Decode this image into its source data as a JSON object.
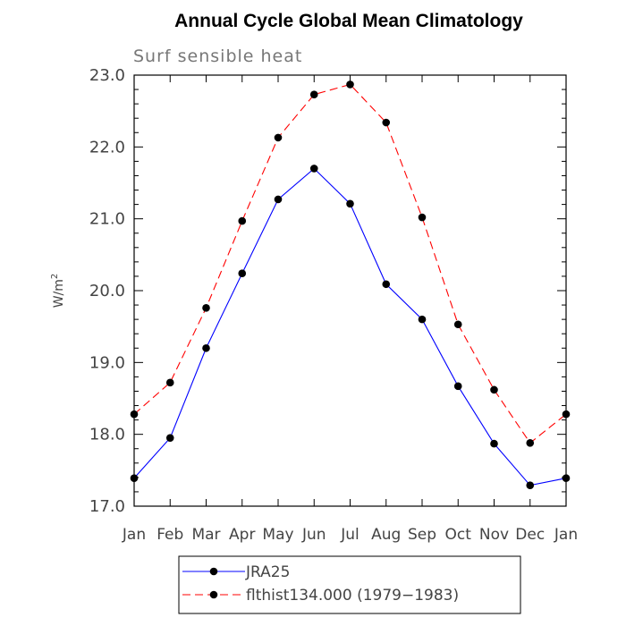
{
  "chart_data": {
    "type": "line",
    "title": "Annual Cycle Global Mean Climatology",
    "subtitle": "Surf sensible heat",
    "ylabel_base": "W/m",
    "ylabel_sup": "2",
    "xlabel": "",
    "categories": [
      "Jan",
      "Feb",
      "Mar",
      "Apr",
      "May",
      "Jun",
      "Jul",
      "Aug",
      "Sep",
      "Oct",
      "Nov",
      "Dec",
      "Jan"
    ],
    "ylim": [
      17.0,
      23.0
    ],
    "yticks": [
      "17.0",
      "18.0",
      "19.0",
      "20.0",
      "21.0",
      "22.0",
      "23.0"
    ],
    "grid": false,
    "legend_position": "bottom",
    "series": [
      {
        "name": "JRA25",
        "color": "#0000ff",
        "dash": "solid",
        "values": [
          17.39,
          17.95,
          19.2,
          20.24,
          21.27,
          21.7,
          21.21,
          20.09,
          19.6,
          18.67,
          17.87,
          17.29,
          17.39
        ]
      },
      {
        "name": "flthist134.000 (1979−1983)",
        "color": "#ff0000",
        "dash": "dashed",
        "values": [
          18.28,
          18.72,
          19.76,
          20.97,
          22.13,
          22.73,
          22.87,
          22.34,
          21.02,
          19.53,
          18.62,
          17.88,
          18.28
        ]
      }
    ]
  }
}
